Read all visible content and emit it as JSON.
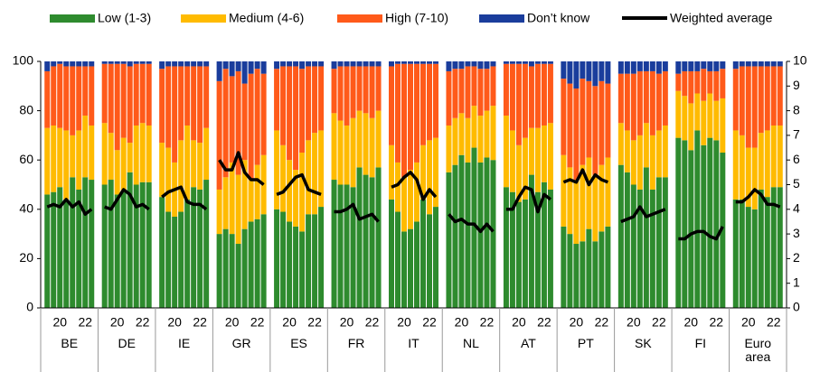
{
  "chart_data": {
    "type": "bar",
    "groups": [
      "BE",
      "DE",
      "IE",
      "GR",
      "ES",
      "FR",
      "IT",
      "NL",
      "AT",
      "PT",
      "SK",
      "FI",
      "Euro area"
    ],
    "categories": [
      null,
      null,
      "20",
      null,
      null,
      null,
      "22",
      null,
      null,
      null,
      "20",
      null,
      null,
      null,
      "22",
      null,
      null,
      null,
      "20",
      null,
      null,
      null,
      "22",
      null,
      null,
      null,
      "20",
      null,
      null,
      null,
      "22",
      null,
      null,
      null,
      "20",
      null,
      null,
      null,
      "22",
      null,
      null,
      null,
      "20",
      null,
      null,
      null,
      "22",
      null,
      null,
      null,
      "20",
      null,
      null,
      null,
      "22",
      null,
      null,
      null,
      "20",
      null,
      null,
      null,
      "22",
      null,
      null,
      null,
      "20",
      null,
      null,
      null,
      "22",
      null,
      null,
      null,
      "20",
      null,
      null,
      null,
      "22",
      null,
      null,
      null,
      "20",
      null,
      null,
      null,
      "22",
      null,
      null,
      null,
      "20",
      null,
      null,
      null,
      "22",
      null,
      null,
      null,
      "20",
      null,
      null,
      null,
      "22",
      null
    ],
    "series": [
      {
        "name": "Low (1-3)",
        "color": "#2e8b2e",
        "values": [
          46,
          47,
          49,
          44,
          53,
          48,
          53,
          52,
          50,
          52,
          46,
          47,
          55,
          50,
          51,
          51,
          45,
          39,
          37,
          39,
          44,
          49,
          48,
          52,
          30,
          32,
          30,
          26,
          32,
          35,
          36,
          38,
          40,
          39,
          35,
          33,
          31,
          38,
          38,
          41,
          52,
          50,
          50,
          49,
          57,
          54,
          53,
          57,
          44,
          39,
          31,
          32,
          35,
          44,
          38,
          41,
          55,
          58,
          62,
          59,
          65,
          59,
          61,
          60,
          49,
          47,
          43,
          44,
          54,
          47,
          51,
          48,
          33,
          30,
          26,
          27,
          32,
          27,
          31,
          33,
          58,
          55,
          50,
          48,
          57,
          48,
          53,
          53,
          69,
          68,
          64,
          72,
          66,
          69,
          68,
          63,
          44,
          44,
          41,
          40,
          48,
          45,
          49,
          49
        ]
      },
      {
        "name": "Medium (4-6)",
        "color": "#ffbb00",
        "values": [
          27,
          27,
          24,
          28,
          17,
          24,
          25,
          22,
          25,
          19,
          18,
          22,
          12,
          24,
          24,
          23,
          22,
          26,
          22,
          29,
          30,
          19,
          19,
          21,
          18,
          21,
          29,
          28,
          28,
          17,
          22,
          24,
          32,
          27,
          25,
          23,
          32,
          30,
          33,
          31,
          27,
          26,
          24,
          28,
          23,
          25,
          24,
          23,
          22,
          20,
          22,
          24,
          24,
          22,
          30,
          28,
          19,
          19,
          17,
          18,
          17,
          19,
          19,
          22,
          29,
          25,
          23,
          25,
          19,
          26,
          23,
          27,
          29,
          27,
          26,
          31,
          29,
          27,
          27,
          28,
          17,
          17,
          18,
          22,
          18,
          22,
          19,
          21,
          19,
          18,
          19,
          15,
          18,
          18,
          16,
          22,
          28,
          26,
          24,
          25,
          23,
          27,
          25,
          25
        ]
      },
      {
        "name": "High (7-10)",
        "color": "#ff5a1a",
        "values": [
          23,
          24,
          26,
          26,
          28,
          26,
          20,
          24,
          24,
          28,
          35,
          30,
          31,
          25,
          24,
          25,
          30,
          33,
          39,
          30,
          24,
          30,
          31,
          25,
          44,
          44,
          35,
          42,
          31,
          43,
          39,
          33,
          25,
          32,
          38,
          42,
          34,
          30,
          27,
          26,
          18,
          22,
          24,
          21,
          18,
          19,
          21,
          18,
          32,
          40,
          46,
          43,
          40,
          33,
          31,
          30,
          22,
          20,
          18,
          21,
          16,
          19,
          17,
          16,
          21,
          27,
          33,
          30,
          25,
          26,
          25,
          24,
          31,
          34,
          37,
          35,
          31,
          36,
          34,
          30,
          20,
          23,
          27,
          26,
          21,
          26,
          23,
          22,
          7,
          10,
          13,
          9,
          13,
          9,
          12,
          12,
          25,
          28,
          33,
          33,
          27,
          26,
          24,
          24
        ]
      },
      {
        "name": "Don’t know",
        "color": "#1a3d9c",
        "values": [
          4,
          2,
          1,
          2,
          2,
          2,
          2,
          2,
          1,
          1,
          1,
          1,
          2,
          1,
          1,
          1,
          3,
          2,
          2,
          2,
          2,
          2,
          2,
          2,
          8,
          3,
          6,
          4,
          9,
          5,
          3,
          5,
          3,
          2,
          2,
          2,
          3,
          2,
          2,
          2,
          3,
          2,
          2,
          2,
          2,
          2,
          2,
          2,
          2,
          1,
          1,
          1,
          1,
          1,
          1,
          1,
          4,
          3,
          3,
          2,
          2,
          3,
          3,
          2,
          1,
          1,
          1,
          1,
          2,
          1,
          1,
          1,
          7,
          9,
          11,
          7,
          8,
          10,
          8,
          9,
          5,
          5,
          5,
          4,
          4,
          4,
          5,
          4,
          5,
          4,
          4,
          4,
          3,
          4,
          4,
          3,
          3,
          2,
          2,
          2,
          2,
          2,
          2,
          2
        ]
      },
      {
        "name": "Weighted average",
        "type": "line",
        "axis": "y2",
        "color": "#000000",
        "values": [
          4.1,
          4.2,
          4.1,
          4.4,
          4.1,
          4.3,
          3.8,
          4.0,
          4.1,
          4.0,
          4.4,
          4.8,
          4.6,
          4.1,
          4.2,
          4.0,
          4.5,
          4.7,
          4.8,
          4.9,
          4.3,
          4.2,
          4.2,
          4.0,
          6.0,
          5.6,
          5.6,
          6.3,
          5.5,
          5.2,
          5.2,
          5.0,
          4.6,
          4.7,
          5.0,
          5.3,
          5.4,
          4.8,
          4.7,
          4.6,
          3.9,
          3.9,
          4.0,
          4.2,
          3.6,
          3.7,
          3.8,
          3.5,
          4.9,
          5.0,
          5.3,
          5.5,
          5.2,
          4.4,
          4.8,
          4.5,
          3.8,
          3.5,
          3.6,
          3.4,
          3.4,
          3.1,
          3.4,
          3.1,
          4.0,
          4.0,
          4.5,
          4.9,
          4.8,
          3.9,
          4.6,
          4.4,
          5.1,
          5.2,
          5.1,
          5.6,
          5.0,
          5.4,
          5.2,
          5.1,
          3.5,
          3.6,
          3.7,
          4.1,
          3.7,
          3.8,
          3.9,
          4.0,
          2.8,
          2.8,
          3.0,
          3.1,
          3.1,
          2.9,
          2.8,
          3.3,
          4.3,
          4.3,
          4.5,
          4.8,
          4.6,
          4.2,
          4.2,
          4.1
        ]
      }
    ],
    "ylim": [
      0,
      100
    ],
    "yticks": [
      0,
      20,
      40,
      60,
      80,
      100
    ],
    "y2lim": [
      0,
      10
    ],
    "y2ticks": [
      0,
      1,
      2,
      3,
      4,
      5,
      6,
      7,
      8,
      9,
      10
    ],
    "legend": "top"
  }
}
